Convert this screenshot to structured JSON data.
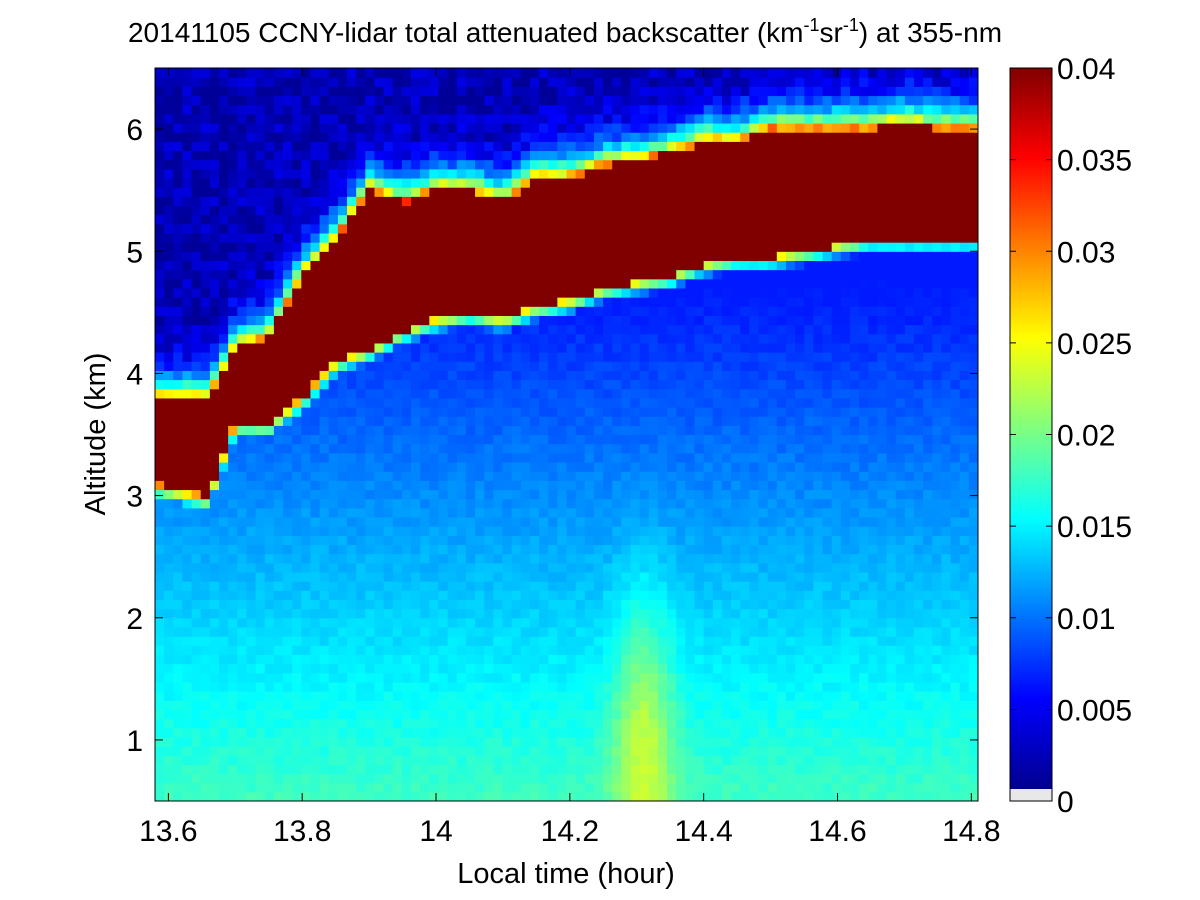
{
  "chart_data": {
    "type": "heatmap",
    "title": {
      "prefix": "20141105 CCNY-lidar total attenuated backscatter (km",
      "sup1": "-1",
      "mid": "sr",
      "sup2": "-1",
      "suffix": ") at 355-nm"
    },
    "xlabel": "Local time (hour)",
    "ylabel": "Altitude (km)",
    "xlim": [
      13.58,
      14.81
    ],
    "ylim": [
      0.5,
      6.5
    ],
    "xticks": [
      {
        "value": 13.6,
        "label": "13.6"
      },
      {
        "value": 13.8,
        "label": "13.8"
      },
      {
        "value": 14.0,
        "label": "14"
      },
      {
        "value": 14.2,
        "label": "14.2"
      },
      {
        "value": 14.4,
        "label": "14.4"
      },
      {
        "value": 14.6,
        "label": "14.6"
      },
      {
        "value": 14.8,
        "label": "14.8"
      }
    ],
    "yticks": [
      {
        "value": 1,
        "label": "1"
      },
      {
        "value": 2,
        "label": "2"
      },
      {
        "value": 3,
        "label": "3"
      },
      {
        "value": 4,
        "label": "4"
      },
      {
        "value": 5,
        "label": "5"
      },
      {
        "value": 6,
        "label": "6"
      }
    ],
    "colorbar": {
      "colormap": "jet",
      "range": [
        0,
        0.04
      ],
      "ticks": [
        {
          "value": 0,
          "label": "0"
        },
        {
          "value": 0.005,
          "label": "0.005"
        },
        {
          "value": 0.01,
          "label": "0.01"
        },
        {
          "value": 0.015,
          "label": "0.015"
        },
        {
          "value": 0.02,
          "label": "0.02"
        },
        {
          "value": 0.025,
          "label": "0.025"
        },
        {
          "value": 0.03,
          "label": "0.03"
        },
        {
          "value": 0.035,
          "label": "0.035"
        },
        {
          "value": 0.04,
          "label": "0.04"
        }
      ],
      "no_data_color": "#e8e8e8"
    },
    "grid": false,
    "layer_profile": {
      "description_free": true,
      "time": [
        13.58,
        13.62,
        13.66,
        13.7,
        13.75,
        13.8,
        13.85,
        13.9,
        13.95,
        14.0,
        14.05,
        14.1,
        14.15,
        14.2,
        14.25,
        14.3,
        14.35,
        14.4,
        14.45,
        14.5,
        14.55,
        14.6,
        14.65,
        14.7,
        14.75,
        14.81
      ],
      "cloud_base_km": [
        3.1,
        3.05,
        3.0,
        3.6,
        3.6,
        3.8,
        4.1,
        4.2,
        4.35,
        4.45,
        4.5,
        4.45,
        4.55,
        4.6,
        4.7,
        4.75,
        4.8,
        4.9,
        4.95,
        4.95,
        5.0,
        5.05,
        5.1,
        5.1,
        5.1,
        5.1
      ],
      "cloud_top_km": [
        3.8,
        3.8,
        3.8,
        4.2,
        4.3,
        4.8,
        5.1,
        5.5,
        5.4,
        5.5,
        5.5,
        5.4,
        5.6,
        5.6,
        5.7,
        5.75,
        5.8,
        5.9,
        5.9,
        6.0,
        6.0,
        6.0,
        6.0,
        6.05,
        6.0,
        6.0
      ],
      "surface_layer_peak": {
        "time": 14.31,
        "altitude_km": 1.0,
        "value": 0.024
      }
    }
  }
}
